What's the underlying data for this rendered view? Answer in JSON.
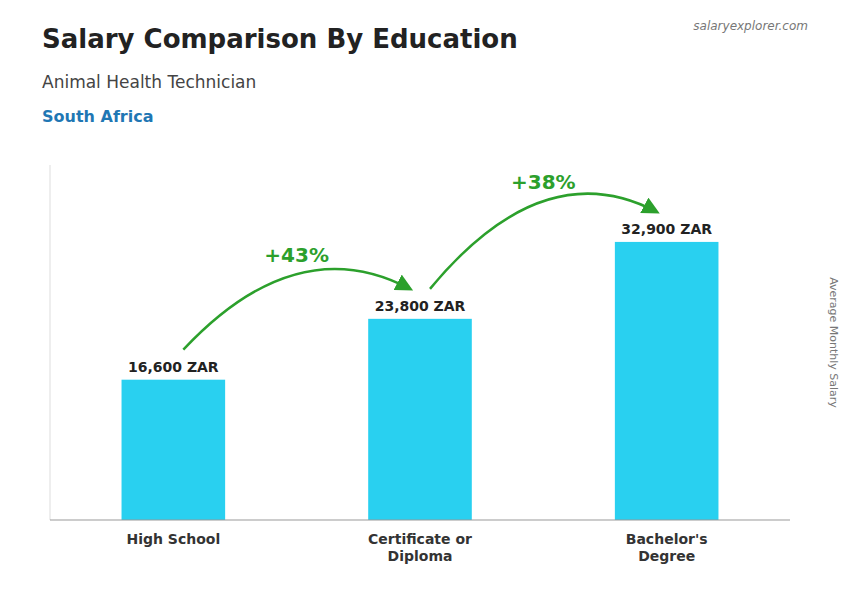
{
  "chart_data": {
    "type": "bar",
    "title": "Salary Comparison By Education",
    "subtitle": "Animal Health Technician",
    "y_label": "Average Monthly Salary",
    "annotations": [
      "South Africa",
      "salaryexplorer.com",
      "+43%",
      "+38%"
    ],
    "categories": [
      "High School",
      "Certificate or\nDiploma",
      "Bachelor's\nDegree"
    ],
    "values": [
      16600,
      23800,
      32900
    ],
    "value_labels": [
      "16,600 ZAR",
      "23,800 ZAR",
      "32,900 ZAR"
    ],
    "data_labels": true,
    "color": "#29d0f0",
    "ylim": [
      0,
      42000
    ],
    "tick_labels": "x",
    "grid": false
  }
}
